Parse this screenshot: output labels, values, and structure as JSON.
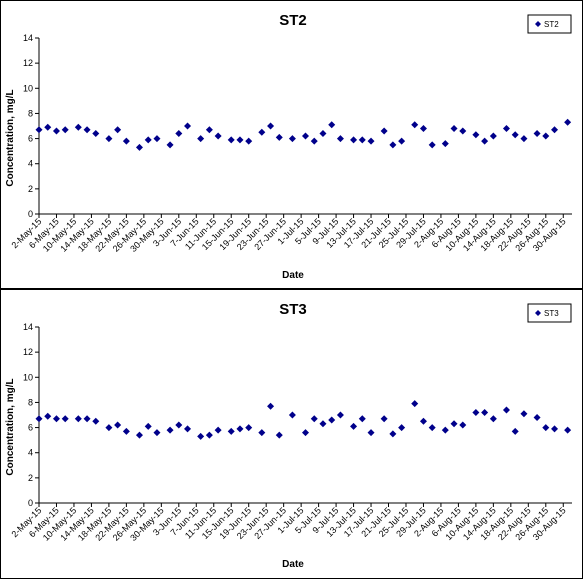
{
  "colors": {
    "marker": "#00008B",
    "axis": "#000000",
    "background": "#ffffff"
  },
  "chart_data": [
    {
      "type": "scatter",
      "title": "ST2",
      "xlabel": "Date",
      "ylabel": "Concentration, mg/L",
      "ylim": [
        0,
        14
      ],
      "yticks": [
        0,
        2,
        4,
        6,
        8,
        10,
        12,
        14
      ],
      "xlim": [
        "2-May-15",
        "1-Sep-15"
      ],
      "xtick_labels": [
        "2-May-15",
        "6-May-15",
        "10-May-15",
        "14-May-15",
        "18-May-15",
        "22-May-15",
        "26-May-15",
        "30-May-15",
        "3-Jun-15",
        "7-Jun-15",
        "11-Jun-15",
        "15-Jun-15",
        "19-Jun-15",
        "23-Jun-15",
        "27-Jun-15",
        "1-Jul-15",
        "5-Jul-15",
        "9-Jul-15",
        "13-Jul-15",
        "17-Jul-15",
        "21-Jul-15",
        "25-Jul-15",
        "29-Jul-15",
        "2-Aug-15",
        "6-Aug-15",
        "10-Aug-15",
        "14-Aug-15",
        "18-Aug-15",
        "22-Aug-15",
        "26-Aug-15",
        "30-Aug-15"
      ],
      "grid": false,
      "legend": "top-right",
      "series": [
        {
          "name": "ST2",
          "x": [
            "2-May-15",
            "4-May-15",
            "6-May-15",
            "8-May-15",
            "11-May-15",
            "13-May-15",
            "15-May-15",
            "18-May-15",
            "20-May-15",
            "22-May-15",
            "25-May-15",
            "27-May-15",
            "29-May-15",
            "1-Jun-15",
            "3-Jun-15",
            "5-Jun-15",
            "8-Jun-15",
            "10-Jun-15",
            "12-Jun-15",
            "15-Jun-15",
            "17-Jun-15",
            "19-Jun-15",
            "22-Jun-15",
            "24-Jun-15",
            "26-Jun-15",
            "29-Jun-15",
            "2-Jul-15",
            "4-Jul-15",
            "6-Jul-15",
            "8-Jul-15",
            "10-Jul-15",
            "13-Jul-15",
            "15-Jul-15",
            "17-Jul-15",
            "20-Jul-15",
            "22-Jul-15",
            "24-Jul-15",
            "27-Jul-15",
            "29-Jul-15",
            "31-Jul-15",
            "3-Aug-15",
            "5-Aug-15",
            "7-Aug-15",
            "10-Aug-15",
            "12-Aug-15",
            "14-Aug-15",
            "17-Aug-15",
            "19-Aug-15",
            "21-Aug-15",
            "24-Aug-15",
            "26-Aug-15",
            "28-Aug-15",
            "31-Aug-15"
          ],
          "values": [
            6.7,
            6.9,
            6.6,
            6.7,
            6.9,
            6.7,
            6.4,
            6.0,
            6.7,
            5.8,
            5.3,
            5.9,
            6.0,
            5.5,
            6.4,
            7.0,
            6.0,
            6.7,
            6.2,
            5.9,
            5.9,
            5.8,
            6.5,
            7.0,
            6.1,
            6.0,
            6.2,
            5.8,
            6.4,
            7.1,
            6.0,
            5.9,
            5.9,
            5.8,
            6.6,
            5.5,
            5.8,
            7.1,
            6.8,
            5.5,
            5.6,
            6.8,
            6.6,
            6.3,
            5.8,
            6.2,
            6.8,
            6.3,
            6.0,
            6.4,
            6.2,
            6.7,
            7.3
          ]
        }
      ]
    },
    {
      "type": "scatter",
      "title": "ST3",
      "xlabel": "Date",
      "ylabel": "Concentration, mg/L",
      "ylim": [
        0,
        14
      ],
      "yticks": [
        0,
        2,
        4,
        6,
        8,
        10,
        12,
        14
      ],
      "xlim": [
        "2-May-15",
        "1-Sep-15"
      ],
      "xtick_labels": [
        "2-May-15",
        "6-May-15",
        "10-May-15",
        "14-May-15",
        "18-May-15",
        "22-May-15",
        "26-May-15",
        "30-May-15",
        "3-Jun-15",
        "7-Jun-15",
        "11-Jun-15",
        "15-Jun-15",
        "19-Jun-15",
        "23-Jun-15",
        "27-Jun-15",
        "1-Jul-15",
        "5-Jul-15",
        "9-Jul-15",
        "13-Jul-15",
        "17-Jul-15",
        "21-Jul-15",
        "25-Jul-15",
        "29-Jul-15",
        "2-Aug-15",
        "6-Aug-15",
        "10-Aug-15",
        "14-Aug-15",
        "18-Aug-15",
        "22-Aug-15",
        "26-Aug-15",
        "30-Aug-15"
      ],
      "grid": false,
      "legend": "top-right",
      "series": [
        {
          "name": "ST3",
          "x": [
            "2-May-15",
            "4-May-15",
            "6-May-15",
            "8-May-15",
            "11-May-15",
            "13-May-15",
            "15-May-15",
            "18-May-15",
            "20-May-15",
            "22-May-15",
            "25-May-15",
            "27-May-15",
            "29-May-15",
            "1-Jun-15",
            "3-Jun-15",
            "5-Jun-15",
            "8-Jun-15",
            "10-Jun-15",
            "12-Jun-15",
            "15-Jun-15",
            "17-Jun-15",
            "19-Jun-15",
            "22-Jun-15",
            "24-Jun-15",
            "26-Jun-15",
            "29-Jun-15",
            "2-Jul-15",
            "4-Jul-15",
            "6-Jul-15",
            "8-Jul-15",
            "10-Jul-15",
            "13-Jul-15",
            "15-Jul-15",
            "17-Jul-15",
            "20-Jul-15",
            "22-Jul-15",
            "24-Jul-15",
            "27-Jul-15",
            "29-Jul-15",
            "31-Jul-15",
            "3-Aug-15",
            "5-Aug-15",
            "7-Aug-15",
            "10-Aug-15",
            "12-Aug-15",
            "14-Aug-15",
            "17-Aug-15",
            "19-Aug-15",
            "21-Aug-15",
            "24-Aug-15",
            "26-Aug-15",
            "28-Aug-15",
            "31-Aug-15"
          ],
          "values": [
            6.7,
            6.9,
            6.7,
            6.7,
            6.7,
            6.7,
            6.5,
            6.0,
            6.2,
            5.7,
            5.4,
            6.1,
            5.6,
            5.8,
            6.2,
            5.9,
            5.3,
            5.4,
            5.8,
            5.7,
            5.9,
            6.0,
            5.6,
            7.7,
            5.4,
            7.0,
            5.6,
            6.7,
            6.3,
            6.6,
            7.0,
            6.1,
            6.7,
            5.6,
            6.7,
            5.5,
            6.0,
            7.9,
            6.5,
            6.0,
            5.8,
            6.3,
            6.2,
            7.2,
            7.2,
            6.7,
            7.4,
            5.7,
            7.1,
            6.8,
            6.0,
            5.9,
            5.8
          ]
        }
      ]
    }
  ]
}
